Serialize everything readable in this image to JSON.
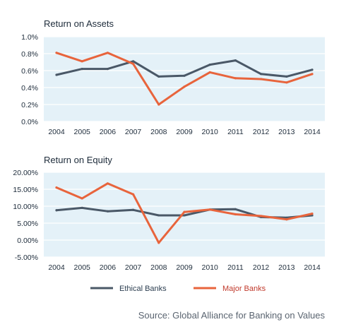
{
  "colors": {
    "ethical": "#4a5867",
    "major": "#e8643c",
    "plot_bg": "#e4f1f8",
    "grid": "#ffffff"
  },
  "chart_data": [
    {
      "type": "line",
      "title": "Return on Assets",
      "categories": [
        "2004",
        "2005",
        "2006",
        "2007",
        "2008",
        "2009",
        "2010",
        "2011",
        "2012",
        "2013",
        "2014"
      ],
      "y_ticks": [
        "1.0%",
        "0.8%",
        "0.6%",
        "0.4%",
        "0.2%",
        "0.0%"
      ],
      "ylim": [
        0,
        1.0
      ],
      "grid": true,
      "series": [
        {
          "name": "Ethical Banks",
          "values": [
            0.55,
            0.62,
            0.62,
            0.71,
            0.53,
            0.54,
            0.67,
            0.72,
            0.56,
            0.53,
            0.61
          ]
        },
        {
          "name": "Major Banks",
          "values": [
            0.81,
            0.71,
            0.81,
            0.68,
            0.2,
            0.41,
            0.58,
            0.51,
            0.5,
            0.46,
            0.56
          ]
        }
      ]
    },
    {
      "type": "line",
      "title": "Return on Equity",
      "categories": [
        "2004",
        "2005",
        "2006",
        "2007",
        "2008",
        "2009",
        "2010",
        "2011",
        "2012",
        "2013",
        "2014"
      ],
      "y_ticks": [
        "20.00%",
        "15.00%",
        "10.00%",
        "5.00%",
        "0.00%",
        "-5.00%"
      ],
      "ylim": [
        -5,
        20
      ],
      "grid": true,
      "series": [
        {
          "name": "Ethical Banks",
          "values": [
            8.8,
            9.5,
            8.5,
            8.9,
            7.3,
            7.3,
            9.0,
            9.1,
            6.8,
            6.6,
            7.3
          ]
        },
        {
          "name": "Major Banks",
          "values": [
            15.5,
            12.3,
            16.7,
            13.5,
            -0.8,
            8.3,
            9.0,
            7.6,
            7.1,
            6.1,
            7.8
          ]
        }
      ]
    }
  ],
  "legend": {
    "position": "bottom-center",
    "items": [
      "Ethical Banks",
      "Major Banks"
    ]
  },
  "source": "Source: Global Alliance for Banking on Values"
}
